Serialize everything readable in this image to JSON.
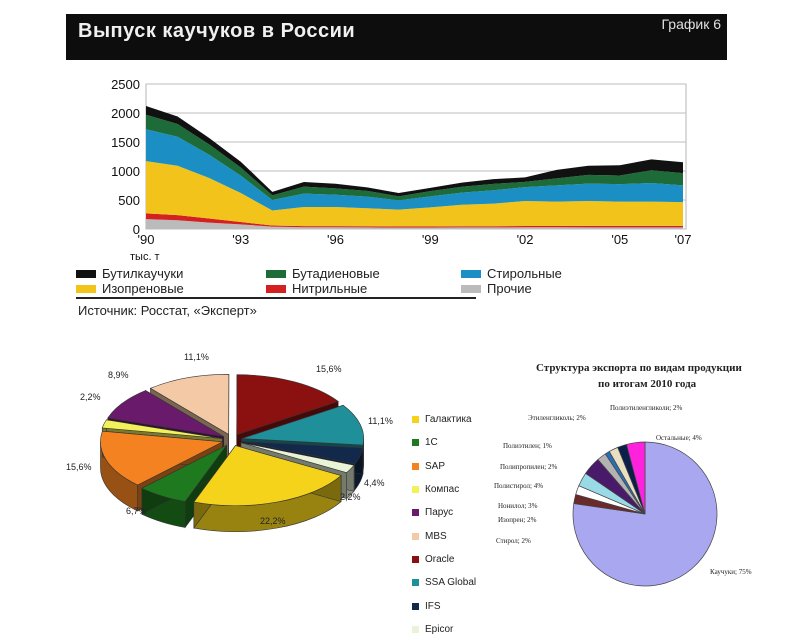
{
  "header": {
    "title": "Выпуск каучуков в России",
    "tag": "График 6"
  },
  "source": "Источник: Росстат, «Эксперт»",
  "legend_main": [
    {
      "label": "Бутилкаучуки",
      "color": "#111111"
    },
    {
      "label": "Бутадиеновые",
      "color": "#1e6b3a"
    },
    {
      "label": "Стирольные",
      "color": "#1b8fc4"
    },
    {
      "label": "Изопреновые",
      "color": "#f2c41b"
    },
    {
      "label": "Нитрильные",
      "color": "#d42020"
    },
    {
      "label": "Прочие",
      "color": "#bbbbbb"
    }
  ],
  "legend_pie": [
    {
      "label": "Галактика",
      "color": "#f5d31a"
    },
    {
      "label": "1С",
      "color": "#1f7a1f"
    },
    {
      "label": "SAP",
      "color": "#f58220"
    },
    {
      "label": "Компас",
      "color": "#f3f15a"
    },
    {
      "label": "Парус",
      "color": "#6a1a6a"
    },
    {
      "label": "MBS",
      "color": "#f3c9a6"
    },
    {
      "label": "Oracle",
      "color": "#8b1010"
    },
    {
      "label": "SSA Global",
      "color": "#1f8f99"
    },
    {
      "label": "IFS",
      "color": "#13294b"
    },
    {
      "label": "Epicor",
      "color": "#e8f3d8"
    }
  ],
  "export_title_1": "Структура экспорта по видам продукции",
  "export_title_2": "по итогам 2010 года",
  "chart_data": [
    {
      "type": "area",
      "title": "Выпуск каучуков в России",
      "ylabel": "тыс. т",
      "ylim": [
        0,
        2500
      ],
      "yticks": [
        0,
        500,
        1000,
        1500,
        2000,
        2500
      ],
      "xlabels": [
        "'90",
        "'93",
        "'96",
        "'99",
        "'02",
        "'05",
        "'07"
      ],
      "x": [
        1990,
        1991,
        1992,
        1993,
        1994,
        1995,
        1996,
        1997,
        1998,
        1999,
        2000,
        2001,
        2002,
        2003,
        2004,
        2005,
        2006,
        2007
      ],
      "series": [
        {
          "name": "Прочие",
          "values": [
            170,
            150,
            110,
            80,
            40,
            30,
            30,
            28,
            25,
            25,
            28,
            28,
            30,
            30,
            28,
            28,
            28,
            28
          ]
        },
        {
          "name": "Нитрильные",
          "values": [
            100,
            90,
            70,
            40,
            20,
            20,
            20,
            20,
            18,
            18,
            20,
            20,
            22,
            22,
            25,
            25,
            25,
            25
          ]
        },
        {
          "name": "Изопреновые",
          "values": [
            900,
            850,
            700,
            500,
            260,
            330,
            330,
            310,
            290,
            330,
            370,
            390,
            430,
            420,
            430,
            420,
            420,
            410
          ]
        },
        {
          "name": "Стирольные",
          "values": [
            550,
            500,
            400,
            300,
            180,
            230,
            210,
            200,
            160,
            190,
            210,
            230,
            240,
            280,
            300,
            300,
            320,
            290
          ]
        },
        {
          "name": "Бутадиеновые",
          "values": [
            250,
            220,
            180,
            140,
            80,
            120,
            110,
            100,
            70,
            90,
            100,
            110,
            90,
            120,
            150,
            150,
            220,
            210
          ]
        },
        {
          "name": "Бутилкаучуки",
          "values": [
            150,
            130,
            110,
            100,
            60,
            80,
            80,
            60,
            57,
            57,
            72,
            82,
            78,
            148,
            157,
            177,
            187,
            187
          ]
        }
      ]
    },
    {
      "type": "pie",
      "labels": [
        "Галактика",
        "1С",
        "SAP",
        "Компас",
        "Парус",
        "MBS",
        "Oracle",
        "SSA Global",
        "IFS",
        "Epicor"
      ],
      "values": [
        22.2,
        6.7,
        15.6,
        2.2,
        8.9,
        11.1,
        15.6,
        11.1,
        4.4,
        2.2
      ],
      "value_labels": [
        "22,2%",
        "6,7%",
        "15,6%",
        "2,2%",
        "8,9%",
        "11,1%",
        "15,6%",
        "11,1%",
        "4,4%",
        "2,2%"
      ]
    },
    {
      "type": "pie",
      "title": "Структура экспорта по видам продукции по итогам 2010 года",
      "labels": [
        "Каучуки",
        "Стирол",
        "Изопрен",
        "Нонилол",
        "Полистирол",
        "Полипропилен",
        "Полиэтилен",
        "Этиленгликоль",
        "Полиэтиленгликоли",
        "Остальные"
      ],
      "values": [
        75,
        2,
        2,
        3,
        4,
        2,
        1,
        2,
        2,
        4
      ],
      "value_labels": [
        "Каучуки; 75%",
        "Стирол; 2%",
        "Изопрен; 2%",
        "Нонилол; 3%",
        "Полистирол; 4%",
        "Полипропилен; 2%",
        "Полиэтилен; 1%",
        "Этиленгликоль; 2%",
        "Полиэтиленгликоли; 2%",
        "Остальные; 4%"
      ]
    }
  ]
}
